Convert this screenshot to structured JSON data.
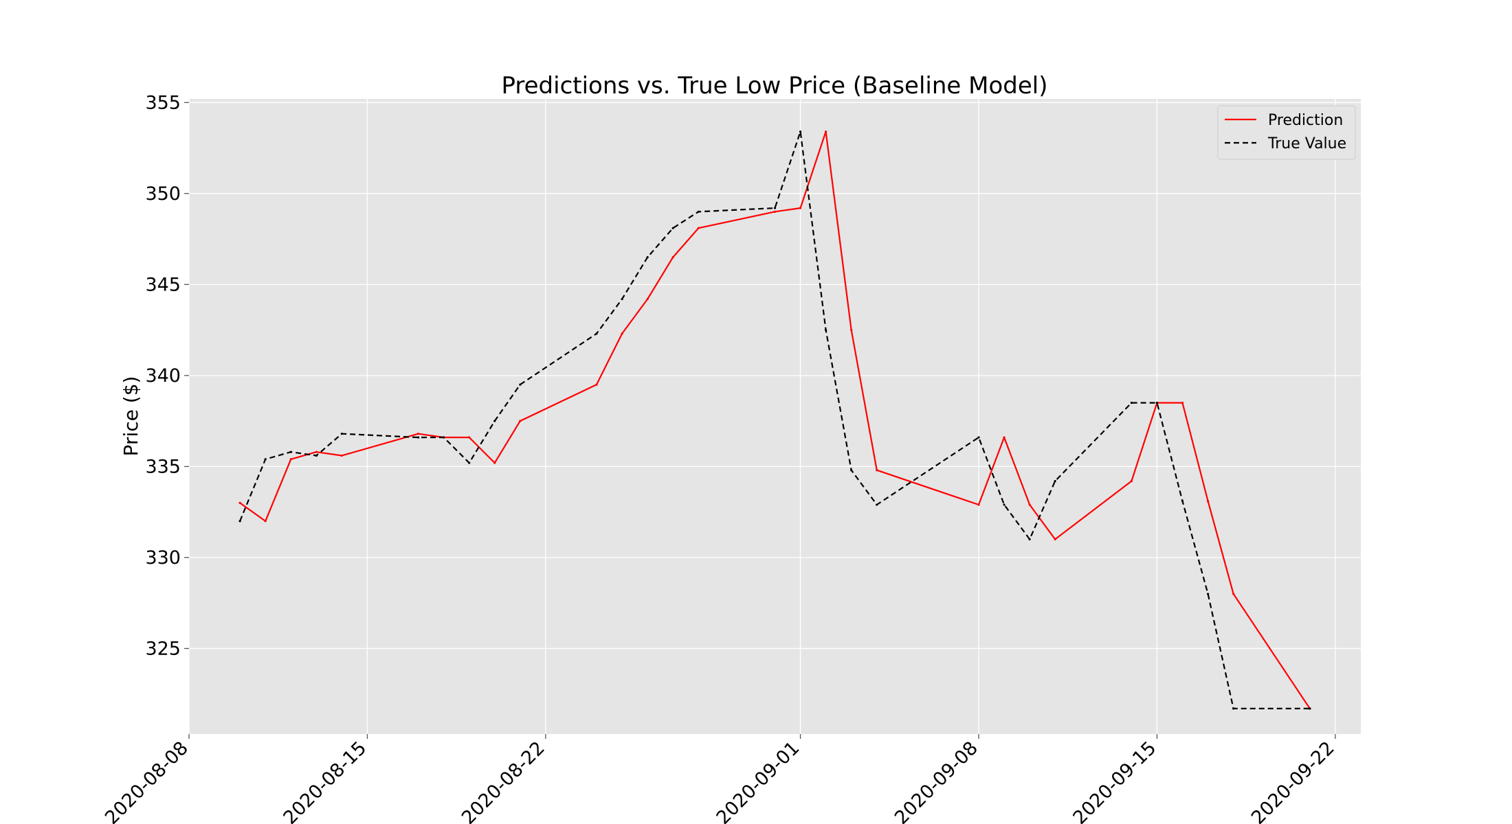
{
  "chart_data": {
    "type": "line",
    "title": "Predictions vs. True Low Price (Baseline Model)",
    "xlabel": "",
    "ylabel": "Price ($)",
    "x_type": "date",
    "xlim": [
      "2020-08-08",
      "2020-09-23"
    ],
    "ylim": [
      320.3,
      355.2
    ],
    "x_ticks": [
      "2020-08-08",
      "2020-08-15",
      "2020-08-22",
      "2020-09-01",
      "2020-09-08",
      "2020-09-15",
      "2020-09-22"
    ],
    "y_ticks": [
      325,
      330,
      335,
      340,
      345,
      350,
      355
    ],
    "grid": true,
    "background": "#e5e5e5",
    "legend_position": "top-right",
    "series": [
      {
        "name": "Prediction",
        "color": "#ff0000",
        "dash": "solid",
        "x": [
          "2020-08-10",
          "2020-08-11",
          "2020-08-12",
          "2020-08-13",
          "2020-08-14",
          "2020-08-17",
          "2020-08-18",
          "2020-08-19",
          "2020-08-20",
          "2020-08-21",
          "2020-08-24",
          "2020-08-25",
          "2020-08-26",
          "2020-08-27",
          "2020-08-28",
          "2020-08-31",
          "2020-09-01",
          "2020-09-02",
          "2020-09-03",
          "2020-09-04",
          "2020-09-08",
          "2020-09-09",
          "2020-09-10",
          "2020-09-11",
          "2020-09-14",
          "2020-09-15",
          "2020-09-16",
          "2020-09-17",
          "2020-09-18",
          "2020-09-21"
        ],
        "values": [
          333.0,
          332.0,
          335.4,
          335.8,
          335.6,
          336.8,
          336.6,
          336.6,
          335.2,
          337.5,
          339.5,
          342.3,
          344.2,
          346.5,
          348.1,
          349.0,
          349.2,
          353.4,
          342.5,
          334.8,
          332.9,
          336.6,
          332.9,
          331.0,
          334.2,
          338.5,
          338.5,
          333.1,
          328.0,
          321.7
        ]
      },
      {
        "name": "True Value",
        "color": "#000000",
        "dash": "dashed",
        "x": [
          "2020-08-10",
          "2020-08-11",
          "2020-08-12",
          "2020-08-13",
          "2020-08-14",
          "2020-08-17",
          "2020-08-18",
          "2020-08-19",
          "2020-08-20",
          "2020-08-21",
          "2020-08-24",
          "2020-08-25",
          "2020-08-26",
          "2020-08-27",
          "2020-08-28",
          "2020-08-31",
          "2020-09-01",
          "2020-09-02",
          "2020-09-03",
          "2020-09-04",
          "2020-09-08",
          "2020-09-09",
          "2020-09-10",
          "2020-09-11",
          "2020-09-14",
          "2020-09-15",
          "2020-09-16",
          "2020-09-17",
          "2020-09-18",
          "2020-09-21"
        ],
        "values": [
          332.0,
          335.4,
          335.8,
          335.6,
          336.8,
          336.6,
          336.6,
          335.2,
          337.5,
          339.5,
          342.3,
          344.2,
          346.5,
          348.1,
          349.0,
          349.2,
          353.4,
          342.5,
          334.8,
          332.9,
          336.6,
          332.9,
          331.0,
          334.2,
          338.5,
          338.5,
          333.1,
          328.0,
          321.7,
          321.7
        ]
      }
    ]
  }
}
